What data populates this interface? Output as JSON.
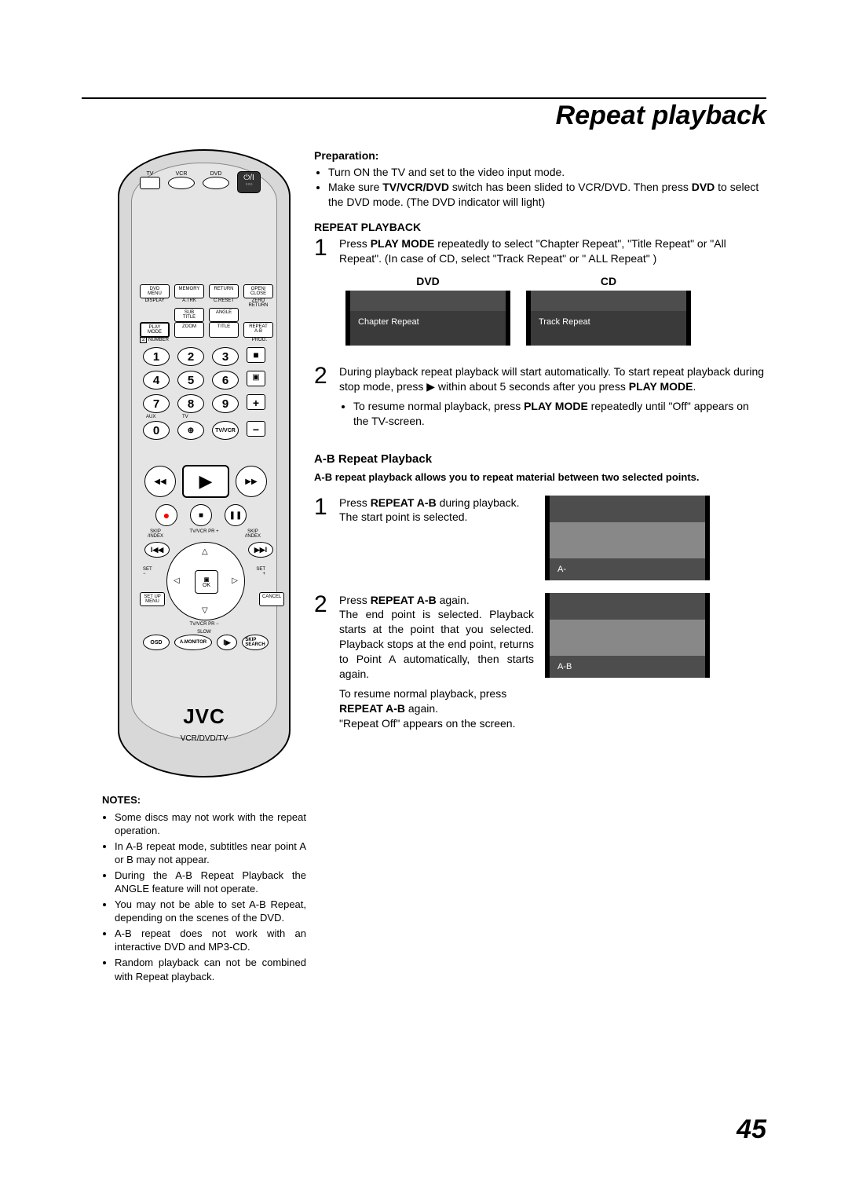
{
  "page": {
    "title": "Repeat playback",
    "number": "45"
  },
  "remote": {
    "brand": "JVC",
    "brand_sub": "VCR/DVD/TV",
    "top_labels": {
      "tv": "TV",
      "vcr": "VCR",
      "dvd": "DVD"
    },
    "row_labels": {
      "display": "DISPLAY",
      "atrk": "A.TRK",
      "creset": "C.RESET",
      "zeroreturn": "ZERO RETURN",
      "dvdmenu": "DVD MENU",
      "memory": "MEMORY",
      "return": "RETURN",
      "openclose": "OPEN/\nCLOSE",
      "subtitle": "SUB TITLE",
      "angle": "ANGLE",
      "playmode": "PLAY\nMODE",
      "zoom": "ZOOM",
      "title": "TITLE",
      "repeatab": "REPEAT\nA-B",
      "number": "NUMBER",
      "prog": "PROG.",
      "aux": "AUX",
      "tv_small": "TV",
      "tvvcr": "TV/VCR",
      "skip_index_l": "SKIP\n/INDEX",
      "skip_index_r": "SKIP\n/INDEX",
      "set_minus": "SET\n−",
      "set_plus": "SET\n+",
      "setup_menu": "SET UP\nMENU",
      "cancel": "CANCEL",
      "osd": "OSD",
      "amonitor": "A.MONITOR",
      "skip_search": "SKIP\nSEARCH",
      "tvvcr_pr_plus": "TV/VCR PR +",
      "tvvcr_pr_minus": "TV/VCR PR −",
      "slow": "SLOW",
      "ok": "OK"
    },
    "numbers": [
      "1",
      "2",
      "3",
      "4",
      "5",
      "6",
      "7",
      "8",
      "9",
      "0"
    ],
    "side_symbols": {
      "stop": "■",
      "clock": "⏲",
      "plus": "+",
      "minus": "−"
    }
  },
  "preparation": {
    "heading": "Preparation:",
    "bullets": [
      "Turn ON the TV and set to the video input mode.",
      "Make sure <b>TV/VCR/DVD</b> switch has been slided to VCR/DVD. Then press <b>DVD</b> to select the DVD mode. (The DVD indicator will light)"
    ]
  },
  "repeat_playback": {
    "heading": "REPEAT PLAYBACK",
    "step1": "Press <b>PLAY MODE</b> repeatedly to select \"Chapter Repeat\", \"Title Repeat\" or \"All Repeat\". (In case of CD, select \"Track Repeat\" or \" ALL Repeat\" )",
    "osd": {
      "dvd_label": "DVD",
      "dvd_text": "Chapter Repeat",
      "cd_label": "CD",
      "cd_text": "Track Repeat"
    },
    "step2_main": "During playback repeat playback will start automatically. To start repeat playback during stop mode, press ▶ within about 5 seconds after you press <b>PLAY MODE</b>.",
    "step2_bullet": "To resume normal playback, press <b>PLAY MODE</b> repeatedly until \"Off\" appears on the TV-screen."
  },
  "ab": {
    "heading": "A-B Repeat Playback",
    "intro": "A-B repeat playback allows you to repeat material between two selected points.",
    "step1": "Press <b>REPEAT A-B</b> during playback.<br>The start point is selected.",
    "fig1_caption": "A-",
    "step2": "Press <b>REPEAT A-B</b> again.<br>The end point is selected. Playback starts at the point that you selected. Playback stops at the end point, returns to Point A automatically, then starts again.",
    "fig2_caption": "A-B",
    "resume": "To resume normal playback, press <b>REPEAT A-B</b> again.<br>\"Repeat Off\" appears on the screen."
  },
  "notes": {
    "heading": "NOTES:",
    "items": [
      "Some discs may not work with the repeat operation.",
      "In A-B repeat mode, subtitles near point A or B may not appear.",
      "During the A-B Repeat Playback the ANGLE feature will not operate.",
      "You may not be able to set A-B Repeat, depending on the scenes of the DVD.",
      "A-B repeat does not work with an interactive DVD and MP3-CD.",
      "Random playback can not be combined with Repeat playback."
    ]
  },
  "colors": {
    "osd_bg": "#3a3a3a",
    "osd_top": "#4d4d4d",
    "remote_body": "#d8d8d8"
  }
}
